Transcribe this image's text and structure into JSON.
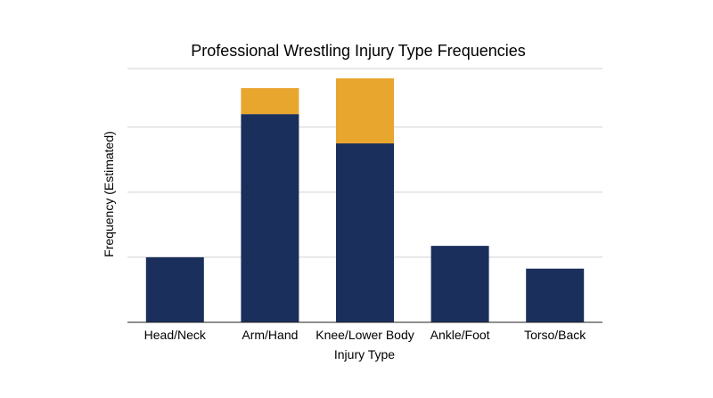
{
  "chart_data": {
    "type": "bar",
    "stacked": true,
    "title": "Professional Wrestling Injury Type Frequencies",
    "xlabel": "Injury Type",
    "ylabel": "Frequency (Estimated)",
    "categories": [
      "Head/Neck",
      "Arm/Hand",
      "Knee/Lower Body",
      "Ankle/Foot",
      "Torso/Back"
    ],
    "series": [
      {
        "values": [
          20,
          64,
          55,
          23.5,
          16.5
        ],
        "color": "#1b2f5c"
      },
      {
        "values": [
          0,
          8,
          20,
          0,
          0
        ],
        "color": "#e8a62f"
      }
    ],
    "ylim": [
      0,
      78
    ],
    "gridlines": [
      20,
      40,
      60,
      78
    ],
    "grid": true,
    "y_tick_labels_shown": false,
    "legend": "none"
  }
}
